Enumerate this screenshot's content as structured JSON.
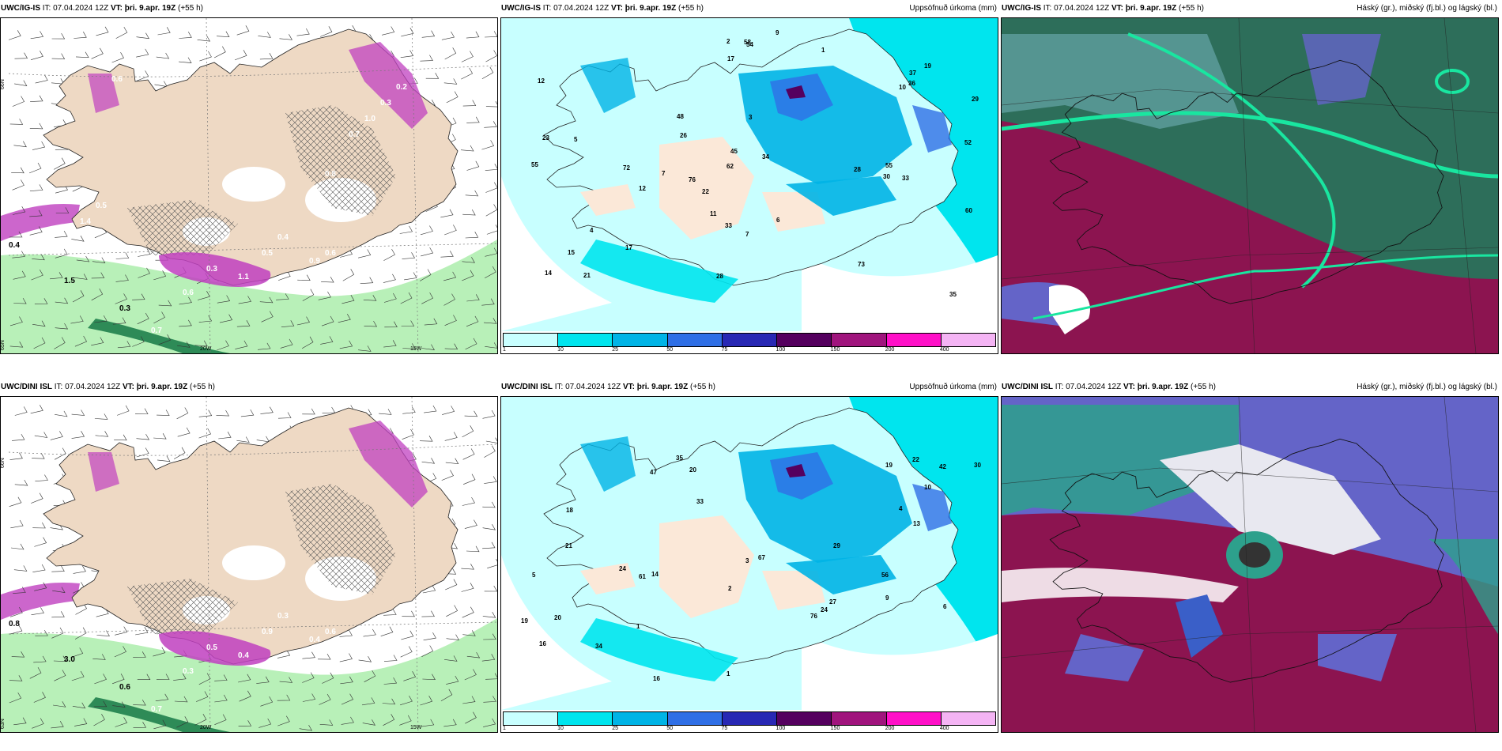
{
  "panels": [
    {
      "source": "UWC/IG-IS",
      "it_label": "IT:",
      "it_value": "07.04.2024 12Z",
      "vt_label": "VT:",
      "vt_value": "þri. 9.apr. 19Z",
      "lead": "(+55 h)",
      "right_title": "",
      "type": "precip-rate"
    },
    {
      "source": "UWC/IG-IS",
      "it_label": "IT:",
      "it_value": "07.04.2024 12Z",
      "vt_label": "VT:",
      "vt_value": "þri. 9.apr. 19Z",
      "lead": "(+55 h)",
      "right_title": "Uppsöfnuð úrkoma (mm)",
      "type": "accum"
    },
    {
      "source": "UWC/IG-IS",
      "it_label": "IT:",
      "it_value": "07.04.2024 12Z",
      "vt_label": "VT:",
      "vt_value": "þri. 9.apr. 19Z",
      "lead": "(+55 h)",
      "right_title": "Háský (gr.), miðský (fj.bl.) og lágský (bl.)",
      "type": "clouds"
    },
    {
      "source": "UWC/DINI ISL",
      "it_label": "IT:",
      "it_value": "07.04.2024 12Z",
      "vt_label": "VT:",
      "vt_value": "þri. 9.apr. 19Z",
      "lead": "(+55 h)",
      "right_title": "",
      "type": "precip-rate"
    },
    {
      "source": "UWC/DINI ISL",
      "it_label": "IT:",
      "it_value": "07.04.2024 12Z",
      "vt_label": "VT:",
      "vt_value": "þri. 9.apr. 19Z",
      "lead": "(+55 h)",
      "right_title": "Uppsöfnuð úrkoma (mm)",
      "type": "accum"
    },
    {
      "source": "UWC/DINI ISL",
      "it_label": "IT:",
      "it_value": "07.04.2024 12Z",
      "vt_label": "VT:",
      "vt_value": "þri. 9.apr. 19Z",
      "lead": "(+55 h)",
      "right_title": "Háský (gr.), miðský (fj.bl.) og lágský (bl.)",
      "type": "clouds"
    }
  ],
  "axis_labels": {
    "lat66": "66N",
    "lat65": "65N",
    "lat63": "63N",
    "lon20": "20W",
    "lon15": "15W"
  },
  "colorbar": {
    "ticks": [
      "1",
      "10",
      "25",
      "50",
      "75",
      "100",
      "150",
      "200",
      "400"
    ],
    "colors": [
      "#c8ffff",
      "#00e5ee",
      "#00b4e6",
      "#2f6fe6",
      "#2828b4",
      "#55005f",
      "#a0147d",
      "#ff10c8",
      "#f4b4f4"
    ]
  },
  "precip_labels_top": [
    "0.4",
    "1.5",
    "0.3",
    "0.7",
    "0.6",
    "0.3",
    "1.1",
    "0.5",
    "0.4",
    "0.9",
    "0.6",
    "0.7",
    "1.0",
    "0.3",
    "0.2",
    "1.4",
    "0.5",
    "0.6",
    "0.8"
  ],
  "precip_labels_bottom": [
    "0.8",
    "3.0",
    "0.6",
    "0.7",
    "0.3",
    "0.5",
    "0.4",
    "0.9",
    "0.3",
    "0.4",
    "0.6"
  ],
  "accum_labels_top": [
    "4",
    "7",
    "2",
    "1",
    "17",
    "12",
    "6",
    "10",
    "23",
    "14",
    "33",
    "35",
    "36",
    "28",
    "29",
    "37",
    "52",
    "58",
    "72",
    "73",
    "76",
    "55",
    "60",
    "62",
    "48",
    "55",
    "26",
    "30",
    "19",
    "17",
    "12",
    "11",
    "3",
    "5",
    "7",
    "15",
    "21",
    "22",
    "34",
    "9",
    "28",
    "33",
    "54",
    "45"
  ],
  "accum_labels_bottom": [
    "4",
    "5",
    "1",
    "10",
    "16",
    "29",
    "33",
    "30",
    "21",
    "19",
    "18",
    "14",
    "20",
    "16",
    "24",
    "76",
    "42",
    "61",
    "67",
    "47",
    "34",
    "22",
    "27",
    "20",
    "56",
    "35",
    "19",
    "13",
    "24",
    "9",
    "6",
    "3",
    "2",
    "1"
  ],
  "cloud_colors": {
    "high": "#e0e0e0",
    "mid": "#6464c8",
    "low": "#8c1450",
    "lowmid": "#2d6e5a",
    "contour": "#19e6a0",
    "sea": "#f0e6d2"
  }
}
